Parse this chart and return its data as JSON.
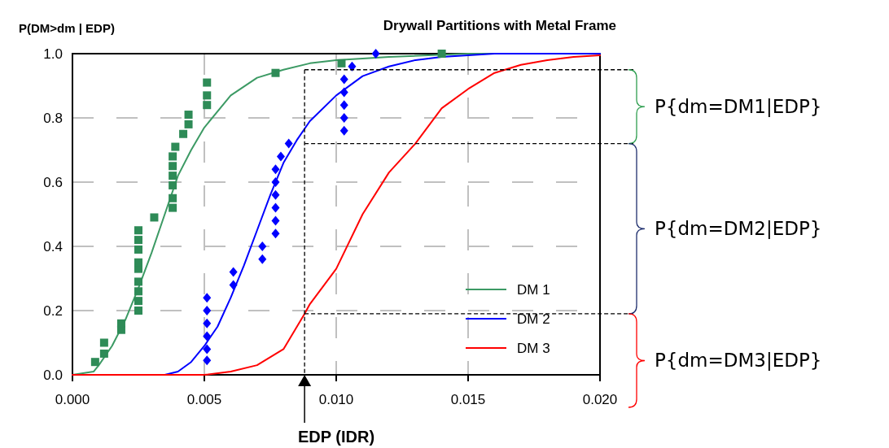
{
  "chart_data": {
    "type": "line",
    "title": "Drywall Partitions with Metal Frame",
    "xlabel": "EDP (IDR)",
    "ylabel": "P(DM>dm | EDP)",
    "xlim": [
      0,
      0.02
    ],
    "ylim": [
      0,
      1
    ],
    "xticks": [
      {
        "value": 0,
        "label": "0.000"
      },
      {
        "value": 0.005,
        "label": "0.005"
      },
      {
        "value": 0.01,
        "label": "0.010"
      },
      {
        "value": 0.015,
        "label": "0.015"
      },
      {
        "value": 0.02,
        "label": "0.020"
      }
    ],
    "yticks": [
      {
        "value": 0,
        "label": "0.0"
      },
      {
        "value": 0.2,
        "label": "0.2"
      },
      {
        "value": 0.4,
        "label": "0.4"
      },
      {
        "value": 0.6,
        "label": "0.6"
      },
      {
        "value": 0.8,
        "label": "0.8"
      },
      {
        "value": 1,
        "label": "1.0"
      }
    ],
    "grid": true,
    "legend": "bottom right",
    "line_style": "solid",
    "marker": "none",
    "series": [
      {
        "name": "DM 1",
        "color": "#3c9a64",
        "x": [
          0,
          0.0008,
          0.001,
          0.0015,
          0.002,
          0.0025,
          0.003,
          0.0035,
          0.004,
          0.0045,
          0.005,
          0.006,
          0.007,
          0.008,
          0.009,
          0.01,
          0.012,
          0.015,
          0.02
        ],
        "values": [
          0,
          0.01,
          0.03,
          0.09,
          0.17,
          0.27,
          0.38,
          0.5,
          0.62,
          0.7,
          0.77,
          0.87,
          0.925,
          0.95,
          0.97,
          0.98,
          0.99,
          1,
          1
        ]
      },
      {
        "name": "DM 2",
        "color": "#0000ff",
        "x": [
          0,
          0.0035,
          0.004,
          0.0045,
          0.005,
          0.0055,
          0.006,
          0.0065,
          0.007,
          0.0075,
          0.008,
          0.0085,
          0.009,
          0.01,
          0.011,
          0.012,
          0.013,
          0.014,
          0.016,
          0.02
        ],
        "values": [
          0,
          0,
          0.01,
          0.04,
          0.09,
          0.15,
          0.24,
          0.34,
          0.45,
          0.56,
          0.66,
          0.73,
          0.79,
          0.87,
          0.93,
          0.96,
          0.98,
          0.99,
          1,
          1
        ]
      },
      {
        "name": "DM 3",
        "color": "#ff0000",
        "x": [
          0,
          0.005,
          0.006,
          0.007,
          0.008,
          0.0088,
          0.009,
          0.01,
          0.011,
          0.012,
          0.013,
          0.014,
          0.015,
          0.016,
          0.017,
          0.018,
          0.019,
          0.02
        ],
        "values": [
          0,
          0,
          0.01,
          0.03,
          0.08,
          0.19,
          0.22,
          0.33,
          0.5,
          0.63,
          0.72,
          0.83,
          0.89,
          0.94,
          0.965,
          0.98,
          0.99,
          0.995
        ]
      },
      {
        "type": "scatter",
        "color": "#2e8b57",
        "marker": "square",
        "x": [
          0.00086,
          0.0012,
          0.0012,
          0.00185,
          0.00185,
          0.0025,
          0.0025,
          0.0025,
          0.0025,
          0.0025,
          0.0025,
          0.0025,
          0.0025,
          0.0025,
          0.0031,
          0.0038,
          0.0038,
          0.0038,
          0.0038,
          0.0038,
          0.0038,
          0.0039,
          0.0042,
          0.0044,
          0.0044,
          0.0051,
          0.0051,
          0.0051,
          0.0077,
          0.0102,
          0.014
        ],
        "values": [
          0.04,
          0.066,
          0.1,
          0.14,
          0.16,
          0.2,
          0.23,
          0.26,
          0.29,
          0.33,
          0.35,
          0.39,
          0.42,
          0.45,
          0.49,
          0.52,
          0.55,
          0.59,
          0.62,
          0.65,
          0.68,
          0.71,
          0.75,
          0.78,
          0.81,
          0.84,
          0.87,
          0.91,
          0.94,
          0.97,
          1
        ]
      },
      {
        "type": "scatter",
        "color": "#0000ff",
        "marker": "diamond",
        "x": [
          0.0051,
          0.0051,
          0.0051,
          0.0051,
          0.0051,
          0.0051,
          0.0061,
          0.0061,
          0.0072,
          0.0072,
          0.0077,
          0.0077,
          0.0077,
          0.0077,
          0.0077,
          0.0077,
          0.0079,
          0.0082,
          0.0103,
          0.0103,
          0.0103,
          0.0103,
          0.0103,
          0.0106,
          0.0115
        ],
        "values": [
          0.045,
          0.08,
          0.12,
          0.16,
          0.2,
          0.24,
          0.28,
          0.32,
          0.36,
          0.4,
          0.44,
          0.48,
          0.52,
          0.56,
          0.6,
          0.64,
          0.68,
          0.72,
          0.76,
          0.8,
          0.84,
          0.88,
          0.92,
          0.96,
          1
        ]
      }
    ],
    "ref_lines": [
      {
        "axis": "x",
        "value": 0.0088,
        "line_style": "dashed",
        "color": "#000000"
      },
      {
        "axis": "y",
        "value": 0.95,
        "line_style": "dashed",
        "color": "#000000"
      },
      {
        "axis": "y",
        "value": 0.72,
        "line_style": "dashed",
        "color": "#000000"
      },
      {
        "axis": "y",
        "value": 0.19,
        "line_style": "dashed",
        "color": "#000000"
      }
    ],
    "annotations": [
      "P{dm=DM1|EDP}",
      "P{dm=DM2|EDP}",
      "P{dm=DM3|EDP}"
    ]
  }
}
